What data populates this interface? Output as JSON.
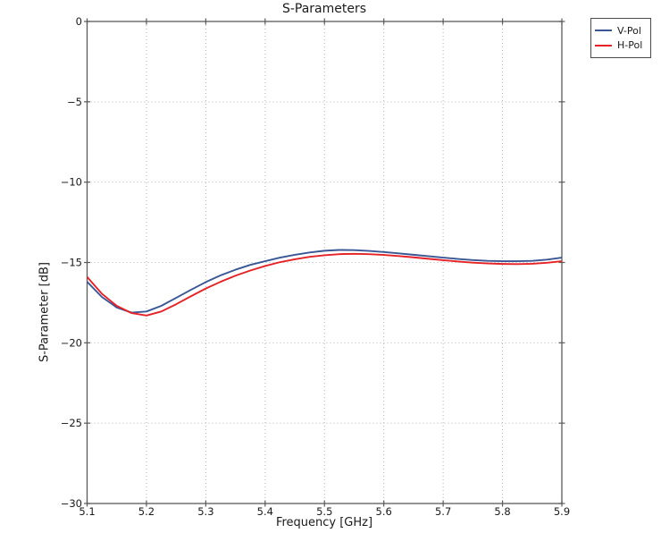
{
  "figure": {
    "background": "#ffffff",
    "frame_color": "#5a5a5a",
    "grid_color": "#b3b3b3",
    "text_color": "#1a1a1a"
  },
  "chart_data": {
    "type": "line",
    "title": "S-Parameters",
    "xlabel": "Frequency [GHz]",
    "ylabel": "S-Parameter [dB]",
    "xlim": [
      5.1,
      5.9
    ],
    "ylim": [
      -30,
      0
    ],
    "xticks": [
      5.1,
      5.2,
      5.3,
      5.4,
      5.5,
      5.6,
      5.7,
      5.8,
      5.9
    ],
    "xtick_labels": [
      "5.1",
      "5.2",
      "5.3",
      "5.4",
      "5.5",
      "5.6",
      "5.7",
      "5.8",
      "5.9"
    ],
    "yticks": [
      0,
      -5,
      -10,
      -15,
      -20,
      -25,
      -30
    ],
    "ytick_labels": [
      "0",
      "−5",
      "−10",
      "−15",
      "−20",
      "−25",
      "−30"
    ],
    "grid": true,
    "grid_style": "dotted",
    "legend": {
      "position": "outside-top-right",
      "entries": [
        {
          "label": "V-Pol",
          "color": "#3a5795"
        },
        {
          "label": "H-Pol",
          "color": "#e62226"
        }
      ]
    },
    "x": [
      5.1,
      5.125,
      5.15,
      5.175,
      5.2,
      5.225,
      5.25,
      5.275,
      5.3,
      5.325,
      5.35,
      5.375,
      5.4,
      5.425,
      5.45,
      5.475,
      5.5,
      5.525,
      5.55,
      5.575,
      5.6,
      5.625,
      5.65,
      5.675,
      5.7,
      5.725,
      5.75,
      5.775,
      5.8,
      5.825,
      5.85,
      5.875,
      5.9
    ],
    "series": [
      {
        "name": "V-Pol",
        "color": "#3a5795",
        "values": [
          -16.2,
          -17.15,
          -17.8,
          -18.12,
          -18.05,
          -17.7,
          -17.2,
          -16.7,
          -16.22,
          -15.8,
          -15.45,
          -15.15,
          -14.92,
          -14.7,
          -14.52,
          -14.38,
          -14.27,
          -14.22,
          -14.23,
          -14.28,
          -14.35,
          -14.43,
          -14.52,
          -14.61,
          -14.7,
          -14.78,
          -14.85,
          -14.9,
          -14.92,
          -14.92,
          -14.9,
          -14.82,
          -14.7
        ]
      },
      {
        "name": "H-Pol",
        "color": "#e62226",
        "values": [
          -15.9,
          -16.95,
          -17.7,
          -18.15,
          -18.3,
          -18.05,
          -17.6,
          -17.1,
          -16.62,
          -16.2,
          -15.82,
          -15.5,
          -15.22,
          -14.98,
          -14.8,
          -14.65,
          -14.55,
          -14.48,
          -14.46,
          -14.48,
          -14.53,
          -14.6,
          -14.68,
          -14.77,
          -14.86,
          -14.94,
          -15.01,
          -15.06,
          -15.09,
          -15.1,
          -15.08,
          -15.02,
          -14.92
        ]
      }
    ]
  }
}
